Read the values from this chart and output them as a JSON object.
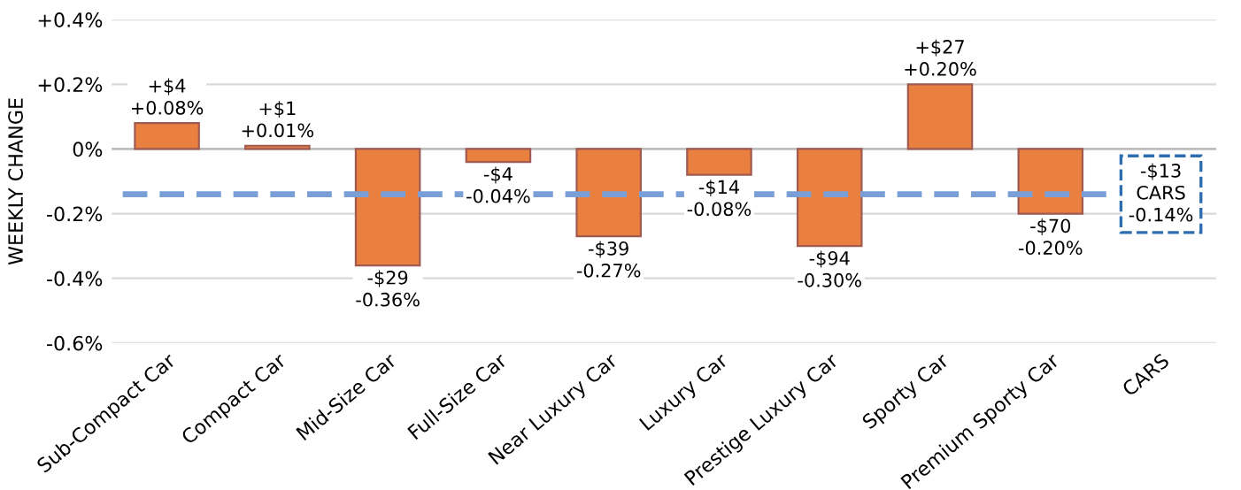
{
  "chart_data": {
    "type": "bar",
    "ylabel": "WEEKLY CHANGE",
    "categories": [
      "Sub-Compact Car",
      "Compact Car",
      "Mid-Size Car",
      "Full-Size Car",
      "Near Luxury Car",
      "Luxury Car",
      "Prestige Luxury Car",
      "Sporty Car",
      "Premium Sporty Car",
      "CARS"
    ],
    "values": [
      0.08,
      0.01,
      -0.36,
      -0.04,
      -0.27,
      -0.08,
      -0.3,
      0.2,
      -0.2,
      null
    ],
    "value_labels": [
      "+$4\n+0.08%",
      "+$1\n+0.01%",
      "-$29\n-0.36%",
      "-$4\n-0.04%",
      "-$39\n-0.27%",
      "-$14\n-0.08%",
      "-$94\n-0.30%",
      "+$27\n+0.20%",
      "-$70\n-0.20%",
      null
    ],
    "color": "#ea8040",
    "ylim": [
      -0.6,
      0.4
    ],
    "yticks": [
      {
        "value": -0.6,
        "label": "-0.6%"
      },
      {
        "value": -0.4,
        "label": "-0.4%"
      },
      {
        "value": -0.2,
        "label": "-0.2%"
      },
      {
        "value": 0,
        "label": "0%"
      },
      {
        "value": 0.2,
        "label": "+0.2%"
      },
      {
        "value": 0.4,
        "label": "+0.4%"
      }
    ],
    "grid": "y",
    "ref_lines": [
      {
        "axis": "y",
        "value": -0.14,
        "label": "-$13\nCARS\n-0.14%",
        "color": "#7a9fd6",
        "line_style": "dashed"
      }
    ]
  }
}
